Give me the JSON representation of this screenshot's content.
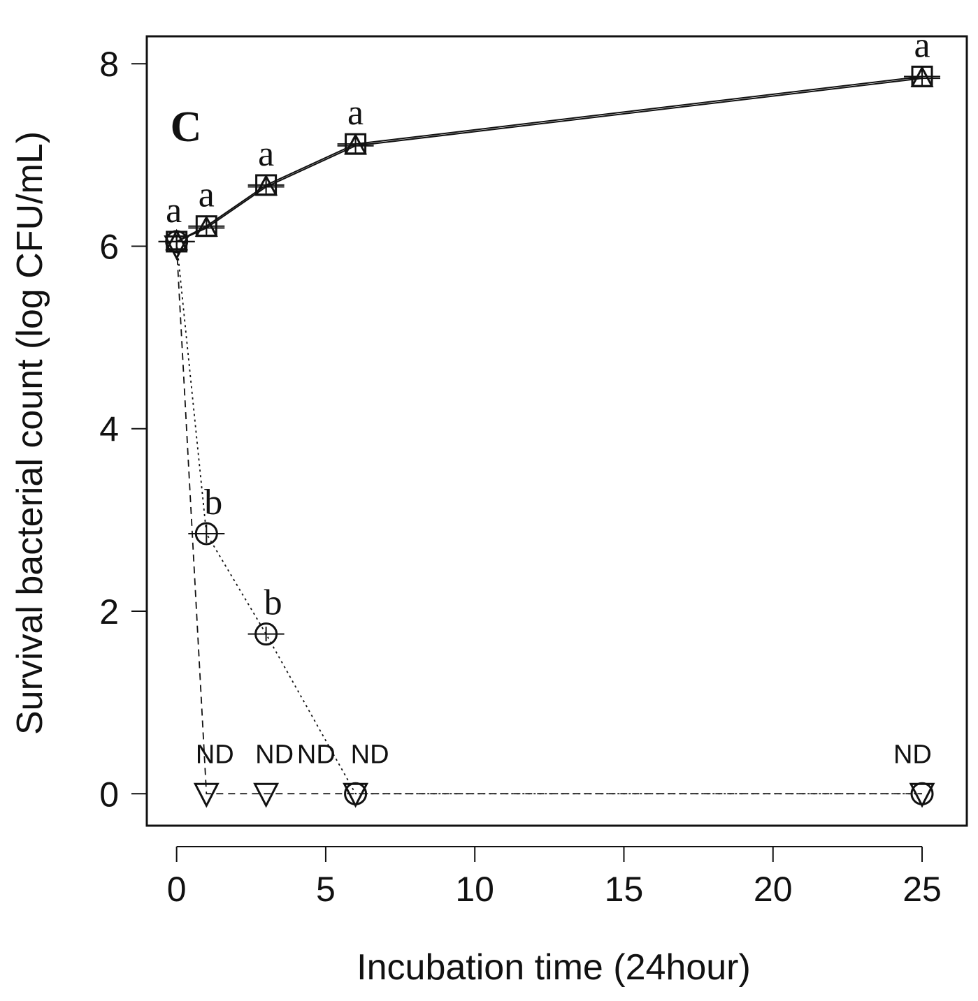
{
  "chart_data": {
    "type": "line",
    "panel_label": "C",
    "xlabel": "Incubation time (24hour)",
    "ylabel": "Survival bacterial count (log CFU/mL)",
    "xlim": [
      -1,
      26.5
    ],
    "ylim": [
      -0.35,
      8.3
    ],
    "xticks": [
      0,
      5,
      10,
      15,
      20,
      25
    ],
    "yticks": [
      0,
      2,
      4,
      6,
      8
    ],
    "series": [
      {
        "name": "square",
        "marker": "square",
        "line": "solid",
        "x": [
          0,
          1,
          3,
          6,
          25
        ],
        "y": [
          6.05,
          6.22,
          6.67,
          7.12,
          7.86
        ],
        "err": [
          0.08,
          0.08,
          0.08,
          0.08,
          0.08
        ]
      },
      {
        "name": "triangle",
        "marker": "triangle",
        "line": "solid",
        "x": [
          0,
          1,
          3,
          6,
          25
        ],
        "y": [
          6.05,
          6.2,
          6.65,
          7.1,
          7.84
        ],
        "err": [
          0.08,
          0.08,
          0.08,
          0.08,
          0.08
        ]
      },
      {
        "name": "circle",
        "marker": "circle",
        "line": "dotted",
        "x": [
          0,
          1,
          3,
          6,
          25
        ],
        "y": [
          6.05,
          2.85,
          1.75,
          0,
          0
        ],
        "err": [
          0.08,
          0.1,
          0.08,
          0,
          0
        ]
      },
      {
        "name": "down-triangle",
        "marker": "down-triangle",
        "line": "dashed",
        "x": [
          0,
          1,
          3,
          6,
          25
        ],
        "y": [
          6.0,
          0,
          0,
          0,
          0
        ],
        "err": [
          0,
          0,
          0,
          0,
          0
        ]
      }
    ],
    "annotations": [
      {
        "text": "a",
        "x": 0,
        "y": 6.05,
        "kind": "letter"
      },
      {
        "text": "a",
        "x": 1,
        "y": 6.22,
        "kind": "letter"
      },
      {
        "text": "a",
        "x": 3,
        "y": 6.67,
        "kind": "letter"
      },
      {
        "text": "a",
        "x": 6,
        "y": 7.12,
        "kind": "letter"
      },
      {
        "text": "a",
        "x": 25,
        "y": 7.86,
        "kind": "letter"
      },
      {
        "text": "b",
        "x": 1,
        "y": 2.85,
        "kind": "letter"
      },
      {
        "text": "b",
        "x": 3,
        "y": 1.75,
        "kind": "letter"
      },
      {
        "text": "ND",
        "x": 1,
        "y": 0,
        "kind": "nd"
      },
      {
        "text": "ND",
        "x": 3,
        "y": 0,
        "kind": "nd"
      },
      {
        "text": "ND",
        "x": 4.4,
        "y": 0,
        "kind": "nd"
      },
      {
        "text": "ND",
        "x": 6.2,
        "y": 0,
        "kind": "nd"
      },
      {
        "text": "ND",
        "x": 24.4,
        "y": 0,
        "kind": "nd"
      }
    ]
  }
}
